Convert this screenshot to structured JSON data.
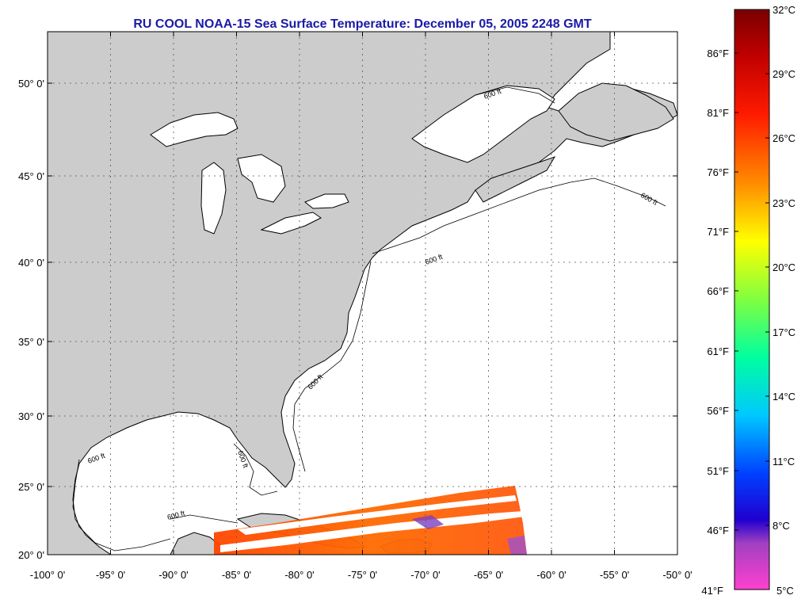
{
  "title": "RU COOL  NOAA-15  Sea Surface Temperature:  December 05, 2005 2248 GMT",
  "map": {
    "lat_labels": [
      "50° 0'",
      "45° 0'",
      "40° 0'",
      "35° 0'",
      "30° 0'",
      "25° 0'",
      "20° 0'"
    ],
    "lon_labels": [
      "-100° 0'",
      "-95° 0'",
      "-90° 0'",
      "-85° 0'",
      "-80° 0'",
      "-75° 0'",
      "-70° 0'",
      "-65° 0'",
      "-60° 0'",
      "-55° 0'",
      "-50° 0'"
    ],
    "lat_range": [
      20,
      52.5
    ],
    "lon_range": [
      -100,
      -50
    ],
    "isobath_labels": [
      "600 ft",
      "600 ft",
      "600 ft",
      "600 ft",
      "600 ft",
      "600 ft",
      "600 ft"
    ],
    "colors": {
      "land": "#cccccc",
      "ocean": "#ffffff",
      "grid": "#666666"
    }
  },
  "colorbar": {
    "celsius_labels": [
      "32°C",
      "29°C",
      "26°C",
      "23°C",
      "20°C",
      "17°C",
      "14°C",
      "11°C",
      "8°C",
      "5°C"
    ],
    "fahrenheit_labels": [
      "86°F",
      "81°F",
      "76°F",
      "71°F",
      "66°F",
      "61°F",
      "56°F",
      "51°F",
      "46°F",
      "41°F"
    ],
    "range_c": [
      5,
      32
    ]
  }
}
